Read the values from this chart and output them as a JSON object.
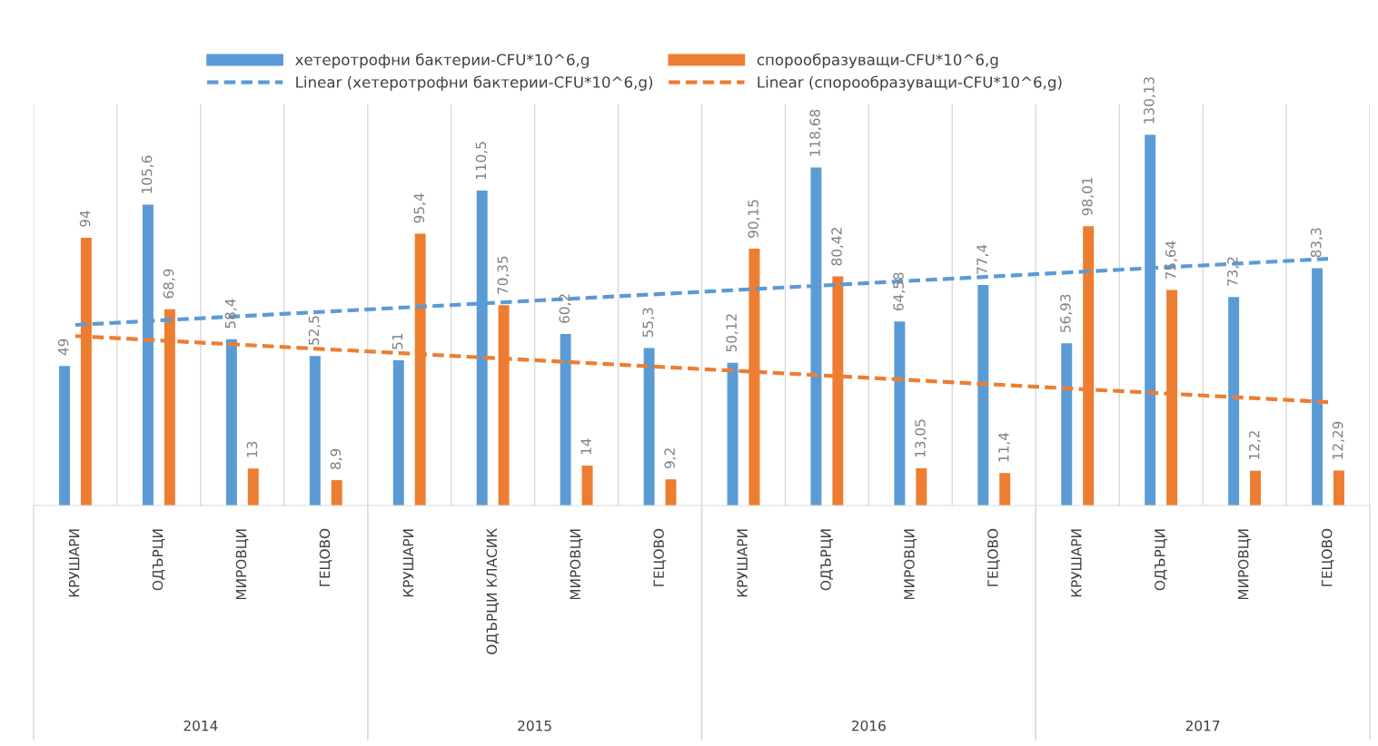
{
  "chart_data": {
    "type": "bar",
    "categories": [
      "КРУШАРИ",
      "ОДЪРЦИ",
      "МИРОВЦИ",
      "ГЕЦОВО",
      "КРУШАРИ",
      "ОДЪРЦИ КЛАСИК",
      "МИРОВЦИ",
      "ГЕЦОВО",
      "КРУШАРИ",
      "ОДЪРЦИ",
      "МИРОВЦИ",
      "ГЕЦОВО",
      "КРУШАРИ",
      "ОДЪРЦИ",
      "МИРОВЦИ",
      "ГЕЦОВО"
    ],
    "series": [
      {
        "name": "хетеротрофни бактерии-CFU*10^6,g",
        "color": "#5b9bd5",
        "values": [
          49,
          105.6,
          58.4,
          52.5,
          51,
          110.5,
          60.2,
          55.3,
          50.12,
          118.68,
          64.58,
          77.4,
          56.93,
          130.13,
          73.2,
          83.3
        ],
        "value_labels": [
          "49",
          "105,6",
          "58,4",
          "52,5",
          "51",
          "110,5",
          "60,2",
          "55,3",
          "50,12",
          "118,68",
          "64,58",
          "77,4",
          "56,93",
          "130,13",
          "73,2",
          "83,3"
        ]
      },
      {
        "name": "спорообразуващи-CFU*10^6,g",
        "color": "#ed7d31",
        "values": [
          94,
          68.9,
          13,
          8.9,
          95.4,
          70.35,
          14,
          9.2,
          90.15,
          80.42,
          13.05,
          11.4,
          98.01,
          75.64,
          12.2,
          12.29
        ],
        "value_labels": [
          "94",
          "68,9",
          "13",
          "8,9",
          "95,4",
          "70,35",
          "14",
          "9,2",
          "90,15",
          "80,42",
          "13,05",
          "11,4",
          "98,01",
          "75,64",
          "12,2",
          "12,29"
        ]
      },
      {
        "name": "Linear (хетеротрофни бактерии-CFU*10^6,g)",
        "type": "line",
        "line_style": "dashed",
        "color": "#5b9bd5",
        "values": [
          63.4,
          null,
          null,
          null,
          null,
          null,
          null,
          null,
          null,
          null,
          null,
          null,
          null,
          null,
          null,
          86.6
        ]
      },
      {
        "name": "Linear (спорообразуващи-CFU*10^6,g)",
        "type": "line",
        "line_style": "dashed",
        "color": "#ed7d31",
        "values": [
          59.5,
          null,
          null,
          null,
          null,
          null,
          null,
          null,
          null,
          null,
          null,
          null,
          null,
          null,
          null,
          36.3
        ]
      }
    ],
    "annotations": [
      "2014",
      "2015",
      "2016",
      "2017"
    ],
    "legend": "top",
    "grid": "x"
  }
}
